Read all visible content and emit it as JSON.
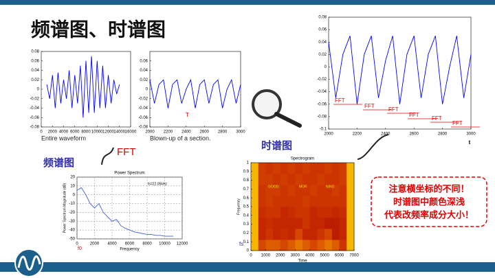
{
  "title": "频谱图、时谱图",
  "labels": {
    "fft": "FFT",
    "spectrum": "频谱图",
    "spectrogram": "时谱图"
  },
  "note": [
    "注意横坐标的不同！",
    "时谱图中颜色深浅",
    "代表改频率成分大小！"
  ],
  "chart_data": [
    {
      "type": "line",
      "caption": "Entire waveform",
      "color": "#0000ff",
      "x": [
        1000,
        1500,
        2000,
        2500,
        3000,
        3500,
        4000,
        4500,
        5000,
        5500,
        6000,
        6500,
        7000,
        7500,
        8000,
        8500,
        9000,
        9500,
        10000,
        10500,
        11000,
        11500,
        12000,
        12500,
        13000,
        13500,
        14000
      ],
      "values": [
        0.01,
        -0.02,
        0.03,
        -0.04,
        0.035,
        -0.03,
        0.02,
        -0.02,
        0.04,
        -0.04,
        0.03,
        -0.03,
        0.05,
        -0.06,
        0.06,
        -0.05,
        0.07,
        -0.05,
        0.06,
        -0.04,
        0.05,
        -0.04,
        0.03,
        -0.03,
        0.02,
        -0.01,
        0.01
      ],
      "xlim": [
        0,
        16000
      ],
      "xticks": [
        0,
        2000,
        4000,
        6000,
        8000,
        10000,
        12000,
        14000,
        16000
      ],
      "ylim": [
        -0.08,
        0.08
      ],
      "yticks": [
        -0.08,
        -0.06,
        -0.04,
        -0.02,
        0,
        0.02,
        0.04,
        0.06,
        0.08
      ]
    },
    {
      "type": "line",
      "caption": "Blown-up of a section.",
      "color": "#0000ff",
      "annotations": [
        "T"
      ],
      "x": [
        2000,
        2050,
        2100,
        2150,
        2200,
        2250,
        2300,
        2350,
        2400,
        2450,
        2500,
        2550,
        2600,
        2650,
        2700,
        2750,
        2800,
        2850,
        2900,
        2950,
        3000
      ],
      "values": [
        0.02,
        -0.03,
        0.01,
        0.02,
        -0.04,
        0.01,
        0.02,
        -0.03,
        0,
        0.02,
        -0.04,
        0.01,
        0.02,
        -0.03,
        0.01,
        0.02,
        -0.04,
        0,
        0.02,
        -0.03,
        0.01
      ],
      "xlim": [
        2000,
        3000
      ],
      "xticks": [
        2000,
        2200,
        2400,
        2600,
        2800,
        3000
      ],
      "ylim": [
        -0.08,
        0.08
      ],
      "yticks": [
        -0.08,
        -0.06,
        -0.04,
        -0.02,
        0,
        0.02,
        0.04,
        0.06
      ]
    },
    {
      "type": "line",
      "xlabel": "t",
      "color": "#0000ff",
      "annotations": [
        "FFT",
        "FFT",
        "FFT",
        "FFT",
        "FFT",
        "FFT"
      ],
      "x": [
        2000,
        2050,
        2100,
        2150,
        2200,
        2250,
        2300,
        2350,
        2400,
        2450,
        2500,
        2550,
        2600,
        2650,
        2700,
        2750,
        2800,
        2850,
        2900,
        2950,
        3000
      ],
      "values": [
        0.04,
        -0.05,
        0.02,
        0.05,
        -0.06,
        0.02,
        0.05,
        -0.05,
        0.01,
        0.05,
        -0.06,
        0.02,
        0.05,
        -0.05,
        0.02,
        0.05,
        -0.06,
        0,
        0.05,
        -0.05,
        0.02
      ],
      "xlim": [
        2000,
        3000
      ],
      "xticks": [
        2000,
        2200,
        2400,
        2600,
        2800,
        3000
      ],
      "ylim": [
        -0.1,
        0.08
      ],
      "yticks": [
        -0.1,
        -0.08,
        -0.06,
        -0.04,
        -0.02,
        0,
        0.02,
        0.04,
        0.06,
        0.08
      ]
    },
    {
      "type": "line",
      "title": "Power Spectrum",
      "xlabel": "Frequency",
      "ylabel": "Power Spectrum Magnitude (dB)",
      "color": "#4060e0",
      "grid": true,
      "annotations": [
        "fs=22.05kHz",
        "f0"
      ],
      "x": [
        0,
        500,
        1000,
        1500,
        2000,
        2500,
        3000,
        3500,
        4000,
        4500,
        5000,
        5500,
        6000,
        6500,
        7000,
        7500,
        8000,
        8500,
        9000,
        9500,
        10000,
        10500,
        11000
      ],
      "values": [
        5,
        8,
        0,
        -10,
        -15,
        -10,
        -20,
        -25,
        -30,
        -28,
        -35,
        -38,
        -40,
        -42,
        -43,
        -44,
        -45,
        -45,
        -46,
        -46,
        -47,
        -47,
        -47
      ],
      "xlim": [
        0,
        12000
      ],
      "xticks": [
        0,
        2000,
        4000,
        6000,
        8000,
        10000,
        12000
      ],
      "ylim": [
        -50,
        20
      ],
      "yticks": [
        -50,
        -40,
        -30,
        -20,
        -10,
        0,
        10,
        20
      ]
    },
    {
      "type": "heatmap",
      "title": "Spectrogram",
      "xlabel": "Time",
      "ylabel": "Frequency",
      "annotations": [
        "GOOD",
        "MOR",
        "NING",
        "fs"
      ],
      "z": [
        [
          0.9,
          0.5,
          0.6,
          0.6,
          0.5,
          0.6,
          0.7,
          0.6,
          0.5,
          0.6,
          0.7,
          0.6,
          0.4,
          0.9
        ],
        [
          0.9,
          0.3,
          0.4,
          0.3,
          0.35,
          0.3,
          0.5,
          0.3,
          0.3,
          0.4,
          0.5,
          0.2,
          0.3,
          0.9
        ],
        [
          0.9,
          0.3,
          0.35,
          0.3,
          0.3,
          0.3,
          0.3,
          0.4,
          0.3,
          0.3,
          0.2,
          0.2,
          0.3,
          0.9
        ],
        [
          0.9,
          0.35,
          0.4,
          0.4,
          0.3,
          0.35,
          0.4,
          0.4,
          0.3,
          0.35,
          0.35,
          0.3,
          0.35,
          0.9
        ],
        [
          0.9,
          0.4,
          0.45,
          0.4,
          0.4,
          0.4,
          0.4,
          0.45,
          0.4,
          0.4,
          0.4,
          0.4,
          0.4,
          0.9
        ],
        [
          0.9,
          0.4,
          0.45,
          0.45,
          0.4,
          0.45,
          0.4,
          0.4,
          0.45,
          0.4,
          0.4,
          0.45,
          0.4,
          0.9
        ],
        [
          0.9,
          0.45,
          0.45,
          0.4,
          0.45,
          0.4,
          0.45,
          0.4,
          0.4,
          0.45,
          0.4,
          0.4,
          0.45,
          0.9
        ],
        [
          0.9,
          0.45,
          0.4,
          0.45,
          0.4,
          0.45,
          0.4,
          0.45,
          0.4,
          0.4,
          0.45,
          0.4,
          0.45,
          0.9
        ]
      ],
      "xlim": [
        0,
        7000
      ],
      "xticks": [
        0,
        1000,
        2000,
        3000,
        4000,
        5000,
        6000,
        7000
      ],
      "ylim": [
        0,
        1
      ],
      "yticks": [
        0,
        0.1,
        0.2,
        0.3,
        0.4,
        0.5,
        0.6,
        0.7,
        0.8,
        0.9,
        1
      ]
    }
  ]
}
